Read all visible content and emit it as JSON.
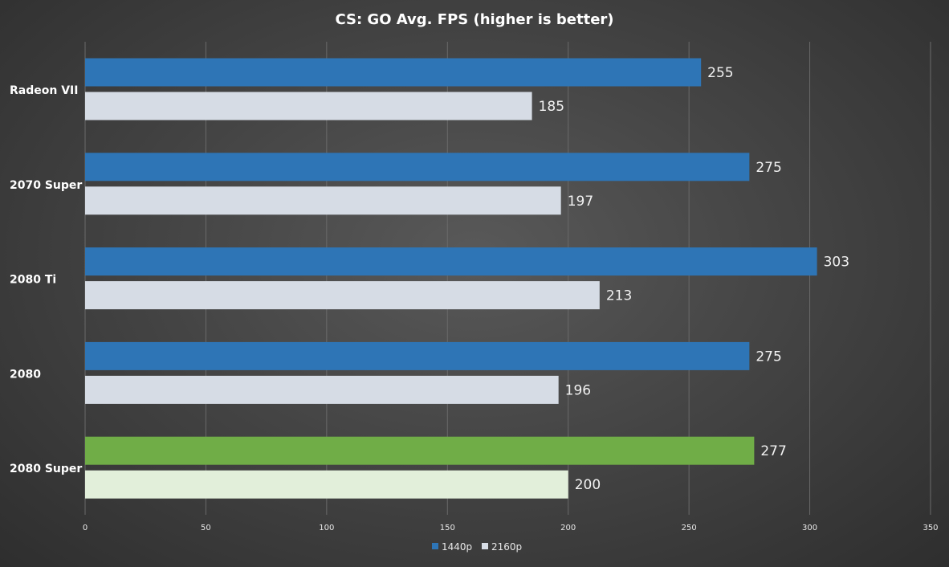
{
  "chart_data": {
    "type": "bar",
    "orientation": "horizontal",
    "title": "CS: GO Avg. FPS (higher is better)",
    "categories": [
      "Radeon VII",
      "2070 Super",
      "2080 Ti",
      "2080",
      "2080 Super"
    ],
    "series": [
      {
        "name": "1440p",
        "values": [
          255,
          275,
          303,
          275,
          277
        ],
        "color": "#2e75b6"
      },
      {
        "name": "2160p",
        "values": [
          185,
          197,
          213,
          196,
          200
        ],
        "color": "#d6dce5"
      }
    ],
    "highlight": {
      "category": "2080 Super",
      "colors": {
        "1440p": "#70ad47",
        "2160p": "#e2efda"
      }
    },
    "xlim": [
      0,
      350
    ],
    "xticks": [
      0,
      50,
      100,
      150,
      200,
      250,
      300,
      350
    ],
    "grid": true,
    "legend_position": "bottom"
  }
}
